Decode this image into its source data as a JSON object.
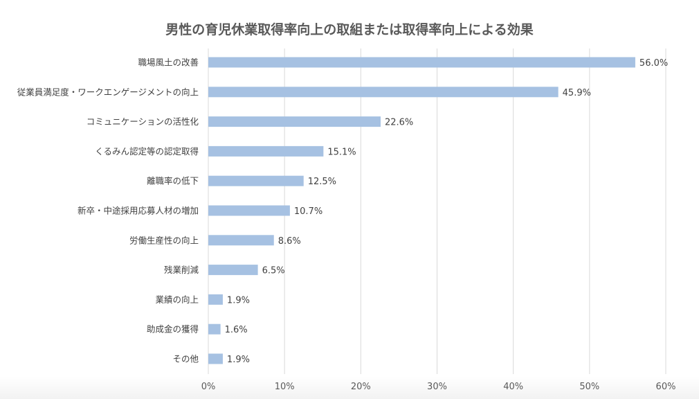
{
  "chart_data": {
    "type": "bar",
    "orientation": "horizontal",
    "title": "男性の育児休業取得率向上の取組または取得率向上による効果",
    "categories": [
      "職場風土の改善",
      "従業員満足度・ワークエンゲージメントの向上",
      "コミュニケーションの活性化",
      "くるみん認定等の認定取得",
      "離職率の低下",
      "新卒・中途採用応募人材の増加",
      "労働生産性の向上",
      "残業削減",
      "業績の向上",
      "助成金の獲得",
      "その他"
    ],
    "values": [
      56.0,
      45.9,
      22.6,
      15.1,
      12.5,
      10.7,
      8.6,
      6.5,
      1.9,
      1.6,
      1.9
    ],
    "value_labels": [
      "56.0%",
      "45.9%",
      "22.6%",
      "15.1%",
      "12.5%",
      "10.7%",
      "8.6%",
      "6.5%",
      "1.9%",
      "1.6%",
      "1.9%"
    ],
    "xlim": [
      0,
      60
    ],
    "x_ticks": [
      0,
      10,
      20,
      30,
      40,
      50,
      60
    ],
    "x_tick_labels": [
      "0%",
      "10%",
      "20%",
      "30%",
      "40%",
      "50%",
      "60%"
    ],
    "grid": "vertical",
    "legend": "none",
    "colors": {
      "bar": "#a6c1e2",
      "grid": "#d9d9d9",
      "text": "#404040",
      "title": "#595959"
    }
  }
}
